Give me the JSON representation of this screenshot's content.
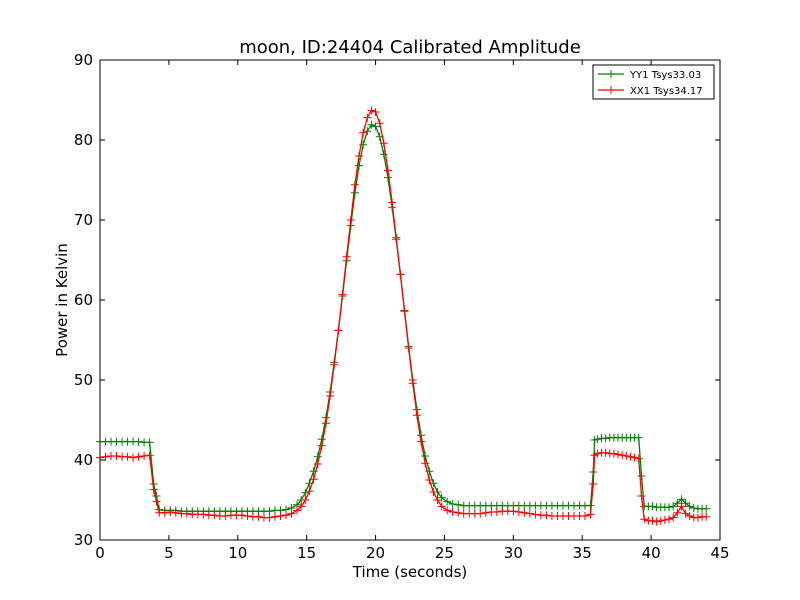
{
  "chart_data": {
    "type": "line",
    "title": "moon, ID:24404 Calibrated Amplitude",
    "xlabel": "Time (seconds)",
    "ylabel": "Power in Kelvin",
    "xlim": [
      0,
      45
    ],
    "ylim": [
      30,
      90
    ],
    "xticks": [
      "0",
      "5",
      "10",
      "15",
      "20",
      "25",
      "30",
      "35",
      "40",
      "45"
    ],
    "yticks": [
      "30",
      "40",
      "50",
      "60",
      "70",
      "80",
      "90"
    ],
    "grid": false,
    "legend_position": "top-right",
    "series": [
      {
        "name": "YY1 Tsys33.03",
        "color": "#008000",
        "marker": "plus",
        "points": [
          [
            0.0,
            42.3
          ],
          [
            0.4,
            42.3
          ],
          [
            0.8,
            42.3
          ],
          [
            1.2,
            42.3
          ],
          [
            1.6,
            42.3
          ],
          [
            2.0,
            42.3
          ],
          [
            2.4,
            42.3
          ],
          [
            2.8,
            42.3
          ],
          [
            3.2,
            42.2
          ],
          [
            3.6,
            42.2
          ],
          [
            3.9,
            37.0
          ],
          [
            4.1,
            35.5
          ],
          [
            4.3,
            33.8
          ],
          [
            4.7,
            33.7
          ],
          [
            5.1,
            33.7
          ],
          [
            5.5,
            33.7
          ],
          [
            5.9,
            33.6
          ],
          [
            6.3,
            33.6
          ],
          [
            6.7,
            33.6
          ],
          [
            7.1,
            33.6
          ],
          [
            7.5,
            33.6
          ],
          [
            7.9,
            33.6
          ],
          [
            8.3,
            33.6
          ],
          [
            8.7,
            33.6
          ],
          [
            9.1,
            33.6
          ],
          [
            9.5,
            33.6
          ],
          [
            9.9,
            33.6
          ],
          [
            10.3,
            33.6
          ],
          [
            10.7,
            33.6
          ],
          [
            11.1,
            33.6
          ],
          [
            11.5,
            33.6
          ],
          [
            11.9,
            33.6
          ],
          [
            12.3,
            33.6
          ],
          [
            12.7,
            33.7
          ],
          [
            13.1,
            33.7
          ],
          [
            13.5,
            33.8
          ],
          [
            13.9,
            34.0
          ],
          [
            14.3,
            34.4
          ],
          [
            14.6,
            35.0
          ],
          [
            14.9,
            35.9
          ],
          [
            15.2,
            37.1
          ],
          [
            15.5,
            38.6
          ],
          [
            15.8,
            40.4
          ],
          [
            16.1,
            42.6
          ],
          [
            16.4,
            45.3
          ],
          [
            16.7,
            48.5
          ],
          [
            17.0,
            52.2
          ],
          [
            17.3,
            56.2
          ],
          [
            17.6,
            60.5
          ],
          [
            17.9,
            64.9
          ],
          [
            18.2,
            69.3
          ],
          [
            18.5,
            73.4
          ],
          [
            18.8,
            76.8
          ],
          [
            19.1,
            79.4
          ],
          [
            19.4,
            81.1
          ],
          [
            19.7,
            81.9
          ],
          [
            20.0,
            81.7
          ],
          [
            20.3,
            80.4
          ],
          [
            20.6,
            78.2
          ],
          [
            20.9,
            75.3
          ],
          [
            21.2,
            71.6
          ],
          [
            21.5,
            67.6
          ],
          [
            21.8,
            63.2
          ],
          [
            22.1,
            58.7
          ],
          [
            22.4,
            54.2
          ],
          [
            22.7,
            50.0
          ],
          [
            23.0,
            46.3
          ],
          [
            23.3,
            43.1
          ],
          [
            23.6,
            40.5
          ],
          [
            23.9,
            38.6
          ],
          [
            24.2,
            37.1
          ],
          [
            24.5,
            36.0
          ],
          [
            24.8,
            35.3
          ],
          [
            25.2,
            34.8
          ],
          [
            25.6,
            34.5
          ],
          [
            26.0,
            34.4
          ],
          [
            26.4,
            34.3
          ],
          [
            26.8,
            34.3
          ],
          [
            27.2,
            34.3
          ],
          [
            27.6,
            34.3
          ],
          [
            28.0,
            34.3
          ],
          [
            28.4,
            34.3
          ],
          [
            28.8,
            34.3
          ],
          [
            29.2,
            34.3
          ],
          [
            29.6,
            34.3
          ],
          [
            30.0,
            34.3
          ],
          [
            30.4,
            34.3
          ],
          [
            30.8,
            34.3
          ],
          [
            31.2,
            34.3
          ],
          [
            31.6,
            34.3
          ],
          [
            32.0,
            34.3
          ],
          [
            32.4,
            34.3
          ],
          [
            32.8,
            34.3
          ],
          [
            33.2,
            34.3
          ],
          [
            33.6,
            34.3
          ],
          [
            34.0,
            34.3
          ],
          [
            34.4,
            34.3
          ],
          [
            34.8,
            34.3
          ],
          [
            35.2,
            34.3
          ],
          [
            35.6,
            34.3
          ],
          [
            35.8,
            38.5
          ],
          [
            35.9,
            42.5
          ],
          [
            36.1,
            42.6
          ],
          [
            36.4,
            42.7
          ],
          [
            36.7,
            42.7
          ],
          [
            37.0,
            42.8
          ],
          [
            37.3,
            42.8
          ],
          [
            37.6,
            42.8
          ],
          [
            37.9,
            42.8
          ],
          [
            38.2,
            42.8
          ],
          [
            38.5,
            42.8
          ],
          [
            38.8,
            42.8
          ],
          [
            39.1,
            42.8
          ],
          [
            39.3,
            38.0
          ],
          [
            39.5,
            34.2
          ],
          [
            39.8,
            34.2
          ],
          [
            40.1,
            34.2
          ],
          [
            40.4,
            34.1
          ],
          [
            40.7,
            34.1
          ],
          [
            41.0,
            34.1
          ],
          [
            41.3,
            34.1
          ],
          [
            41.6,
            34.2
          ],
          [
            41.9,
            34.6
          ],
          [
            42.2,
            35.1
          ],
          [
            42.5,
            34.6
          ],
          [
            42.8,
            34.2
          ],
          [
            43.1,
            34.0
          ],
          [
            43.4,
            33.9
          ],
          [
            43.7,
            33.9
          ],
          [
            44.0,
            33.9
          ]
        ]
      },
      {
        "name": "XX1 Tsys34.17",
        "color": "#ff0000",
        "marker": "plus",
        "points": [
          [
            0.0,
            40.3
          ],
          [
            0.4,
            40.4
          ],
          [
            0.8,
            40.5
          ],
          [
            1.2,
            40.5
          ],
          [
            1.6,
            40.4
          ],
          [
            2.0,
            40.4
          ],
          [
            2.4,
            40.3
          ],
          [
            2.8,
            40.4
          ],
          [
            3.2,
            40.5
          ],
          [
            3.6,
            40.6
          ],
          [
            3.9,
            36.3
          ],
          [
            4.1,
            34.8
          ],
          [
            4.3,
            33.4
          ],
          [
            4.7,
            33.4
          ],
          [
            5.1,
            33.5
          ],
          [
            5.5,
            33.4
          ],
          [
            5.9,
            33.3
          ],
          [
            6.3,
            33.3
          ],
          [
            6.7,
            33.2
          ],
          [
            7.1,
            33.2
          ],
          [
            7.5,
            33.2
          ],
          [
            7.9,
            33.1
          ],
          [
            8.3,
            33.1
          ],
          [
            8.7,
            33.0
          ],
          [
            9.1,
            33.0
          ],
          [
            9.5,
            33.1
          ],
          [
            9.9,
            33.1
          ],
          [
            10.3,
            33.1
          ],
          [
            10.7,
            33.0
          ],
          [
            11.1,
            32.9
          ],
          [
            11.5,
            32.9
          ],
          [
            11.9,
            32.8
          ],
          [
            12.3,
            32.8
          ],
          [
            12.7,
            32.9
          ],
          [
            13.1,
            33.0
          ],
          [
            13.5,
            33.1
          ],
          [
            13.9,
            33.3
          ],
          [
            14.3,
            33.7
          ],
          [
            14.6,
            34.2
          ],
          [
            14.9,
            35.0
          ],
          [
            15.2,
            36.1
          ],
          [
            15.5,
            37.6
          ],
          [
            15.8,
            39.5
          ],
          [
            16.1,
            41.8
          ],
          [
            16.4,
            44.6
          ],
          [
            16.7,
            48.0
          ],
          [
            17.0,
            51.9
          ],
          [
            17.3,
            56.2
          ],
          [
            17.6,
            60.7
          ],
          [
            17.9,
            65.4
          ],
          [
            18.2,
            70.0
          ],
          [
            18.5,
            74.4
          ],
          [
            18.8,
            78.0
          ],
          [
            19.1,
            80.9
          ],
          [
            19.4,
            82.8
          ],
          [
            19.7,
            83.7
          ],
          [
            20.0,
            83.5
          ],
          [
            20.3,
            82.1
          ],
          [
            20.6,
            79.6
          ],
          [
            20.9,
            76.2
          ],
          [
            21.2,
            72.2
          ],
          [
            21.5,
            67.8
          ],
          [
            21.8,
            63.2
          ],
          [
            22.1,
            58.6
          ],
          [
            22.4,
            54.0
          ],
          [
            22.7,
            49.6
          ],
          [
            23.0,
            45.6
          ],
          [
            23.3,
            42.3
          ],
          [
            23.6,
            39.6
          ],
          [
            23.9,
            37.5
          ],
          [
            24.2,
            36.0
          ],
          [
            24.5,
            35.0
          ],
          [
            24.8,
            34.2
          ],
          [
            25.2,
            33.7
          ],
          [
            25.6,
            33.5
          ],
          [
            26.0,
            33.4
          ],
          [
            26.4,
            33.3
          ],
          [
            26.8,
            33.3
          ],
          [
            27.2,
            33.3
          ],
          [
            27.6,
            33.3
          ],
          [
            28.0,
            33.4
          ],
          [
            28.4,
            33.5
          ],
          [
            28.8,
            33.5
          ],
          [
            29.2,
            33.6
          ],
          [
            29.6,
            33.6
          ],
          [
            30.0,
            33.6
          ],
          [
            30.4,
            33.5
          ],
          [
            30.8,
            33.4
          ],
          [
            31.2,
            33.3
          ],
          [
            31.6,
            33.2
          ],
          [
            32.0,
            33.1
          ],
          [
            32.4,
            33.1
          ],
          [
            32.8,
            33.0
          ],
          [
            33.2,
            33.0
          ],
          [
            33.6,
            33.0
          ],
          [
            34.0,
            33.0
          ],
          [
            34.4,
            33.0
          ],
          [
            34.8,
            33.0
          ],
          [
            35.2,
            33.0
          ],
          [
            35.6,
            33.2
          ],
          [
            35.8,
            37.0
          ],
          [
            35.9,
            40.6
          ],
          [
            36.1,
            40.8
          ],
          [
            36.4,
            40.9
          ],
          [
            36.7,
            40.9
          ],
          [
            37.0,
            40.8
          ],
          [
            37.3,
            40.8
          ],
          [
            37.6,
            40.7
          ],
          [
            37.9,
            40.6
          ],
          [
            38.2,
            40.5
          ],
          [
            38.5,
            40.4
          ],
          [
            38.8,
            40.3
          ],
          [
            39.1,
            40.2
          ],
          [
            39.3,
            35.5
          ],
          [
            39.5,
            32.6
          ],
          [
            39.8,
            32.4
          ],
          [
            40.1,
            32.4
          ],
          [
            40.4,
            32.3
          ],
          [
            40.7,
            32.4
          ],
          [
            41.0,
            32.5
          ],
          [
            41.3,
            32.6
          ],
          [
            41.6,
            32.8
          ],
          [
            41.9,
            33.4
          ],
          [
            42.2,
            34.2
          ],
          [
            42.5,
            33.3
          ],
          [
            42.8,
            33.0
          ],
          [
            43.1,
            32.8
          ],
          [
            43.4,
            32.8
          ],
          [
            43.7,
            32.9
          ],
          [
            44.0,
            32.9
          ]
        ]
      }
    ]
  }
}
